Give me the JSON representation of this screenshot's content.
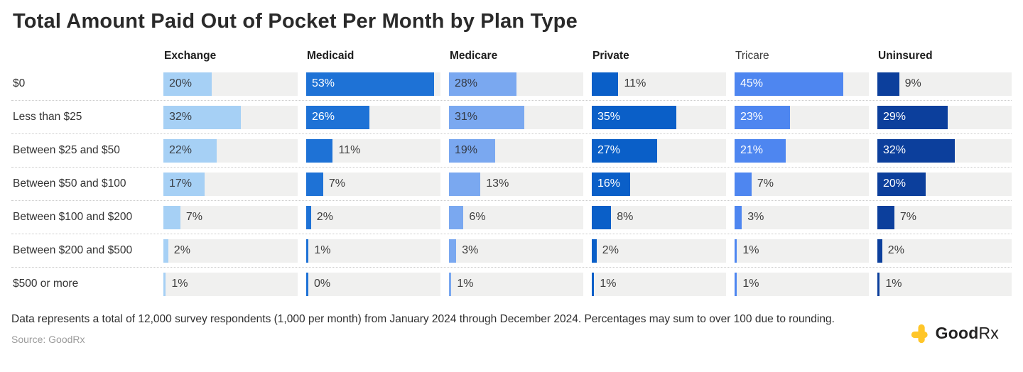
{
  "title": "Total Amount Paid Out of Pocket Per Month by Plan Type",
  "chart_data": {
    "type": "bar",
    "orientation": "horizontal",
    "title": "Total Amount Paid Out of Pocket Per Month by Plan Type",
    "categories": [
      "$0",
      "Less than $25",
      "Between $25 and $50",
      "Between $50 and $100",
      "Between $100 and $200",
      "Between $200 and $500",
      "$500 or more"
    ],
    "series": [
      {
        "name": "Exchange",
        "header_bold": true,
        "color": "#a6d0f5",
        "label_inside_color": "#3a3f46",
        "values": [
          20,
          32,
          22,
          17,
          7,
          2,
          1
        ]
      },
      {
        "name": "Medicaid",
        "header_bold": true,
        "color": "#1e72d6",
        "label_inside_color": "#ffffff",
        "values": [
          53,
          26,
          11,
          7,
          2,
          1,
          0
        ]
      },
      {
        "name": "Medicare",
        "header_bold": true,
        "color": "#7aa8f0",
        "label_inside_color": "#343a45",
        "values": [
          28,
          31,
          19,
          13,
          6,
          3,
          1
        ]
      },
      {
        "name": "Private",
        "header_bold": true,
        "color": "#0a5fc8",
        "label_inside_color": "#ffffff",
        "values": [
          11,
          35,
          27,
          16,
          8,
          2,
          1
        ]
      },
      {
        "name": "Tricare",
        "header_bold": false,
        "color": "#4e86f0",
        "label_inside_color": "#ffffff",
        "values": [
          45,
          23,
          21,
          7,
          3,
          1,
          1
        ]
      },
      {
        "name": "Uninsured",
        "header_bold": true,
        "color": "#0c3f9c",
        "label_inside_color": "#ffffff",
        "values": [
          9,
          29,
          32,
          20,
          7,
          2,
          1
        ]
      }
    ],
    "value_suffix": "%",
    "xlim": [
      0,
      55.5
    ],
    "track_color": "#f0f0ef",
    "outside_label_color": "#3d3d3d",
    "inside_label_threshold": 15,
    "grid": "dotted row separators",
    "legend_position": "none"
  },
  "footer": {
    "note": "Data represents a total of 12,000 survey respondents (1,000 per month) from January 2024 through December 2024. Percentages may sum to over 100 due to rounding.",
    "source": "Source: GoodRx",
    "logo": {
      "icon": "goodrx-plus-icon",
      "icon_color": "#ffc629",
      "text_bold": "Good",
      "text_light": "Rx"
    }
  }
}
